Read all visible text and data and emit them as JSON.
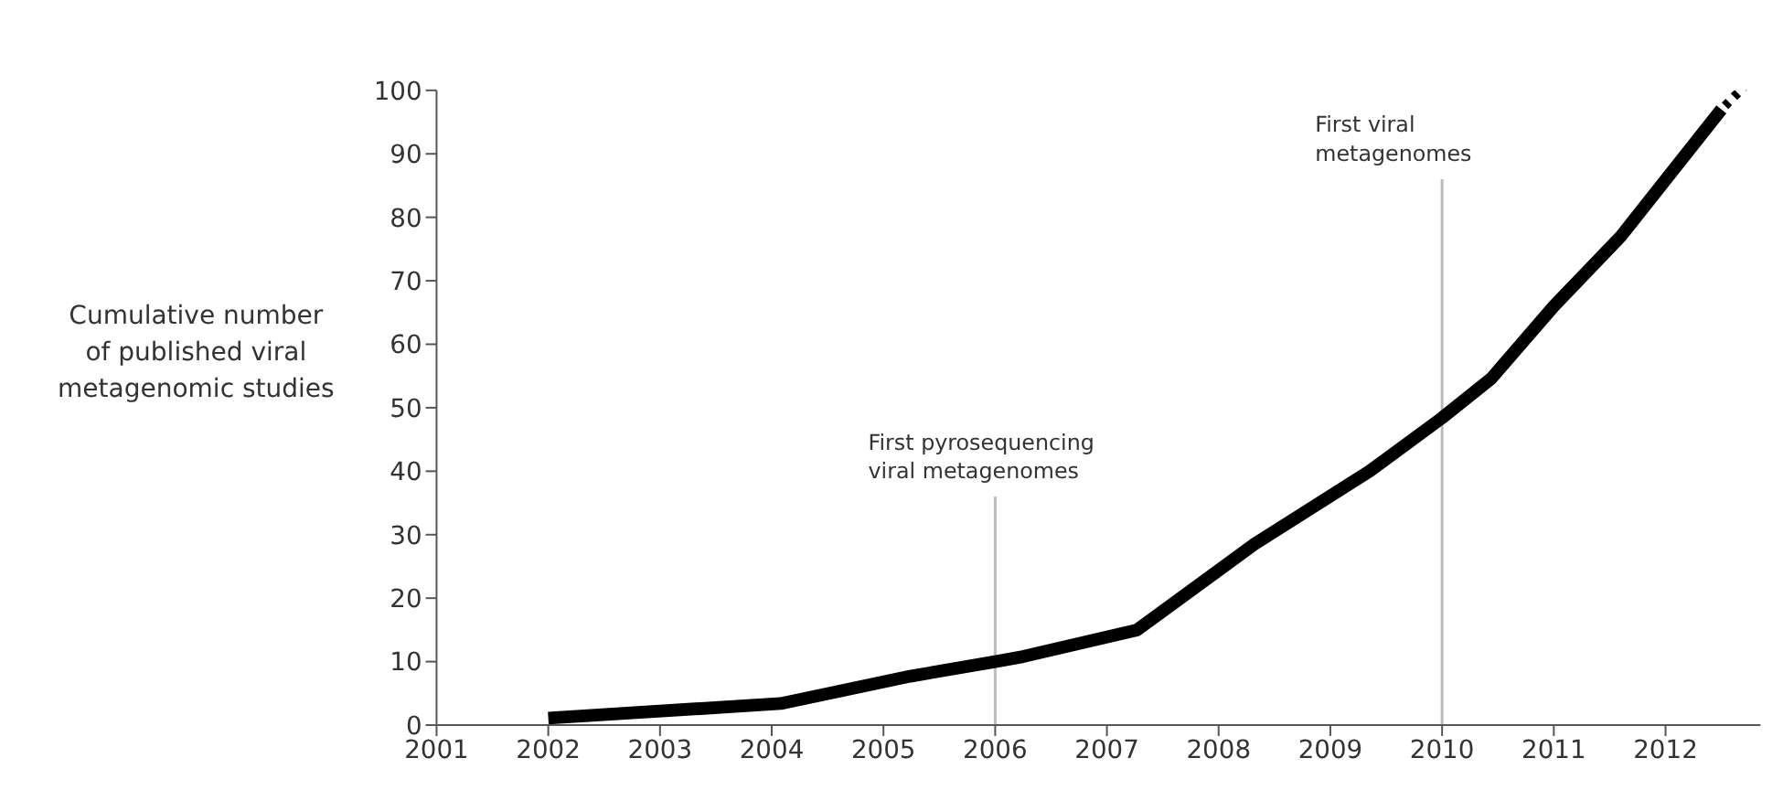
{
  "chart_data": {
    "type": "line",
    "ylabel": "Cumulative number of published viral metagenomic studies",
    "x": [
      2002,
      2004.08,
      2005.24,
      2006,
      2006.25,
      2007.27,
      2008.32,
      2009.35,
      2010,
      2010.44,
      2011,
      2011.6,
      2012.5
    ],
    "series": [
      {
        "color": "#000000",
        "values": [
          1.1,
          3.4,
          7.7,
          10,
          10.8,
          15,
          28.5,
          40,
          48.4,
          54.6,
          66,
          77,
          97
        ]
      }
    ],
    "xlim": [
      2001,
      2012.85
    ],
    "xticks": [
      2001,
      2002,
      2003,
      2004,
      2005,
      2006,
      2007,
      2008,
      2009,
      2010,
      2011,
      2012
    ],
    "ylim": [
      0,
      100
    ],
    "yticks": [
      0,
      10,
      20,
      30,
      40,
      50,
      60,
      70,
      80,
      90,
      100
    ],
    "ref_lines": [
      {
        "axis": "x",
        "value": 2006,
        "color": "#bbbbbb"
      },
      {
        "axis": "x",
        "value": 2010,
        "color": "#bbbbbb"
      }
    ],
    "annotations": [
      {
        "text": "First pyrosequencing viral metagenomes",
        "x": 2006,
        "y": 36
      },
      {
        "text": "First viral metagenomes",
        "x": 2010,
        "y": 86
      }
    ],
    "grid": false,
    "legend": false,
    "marker": "none",
    "line_style": "solid"
  }
}
